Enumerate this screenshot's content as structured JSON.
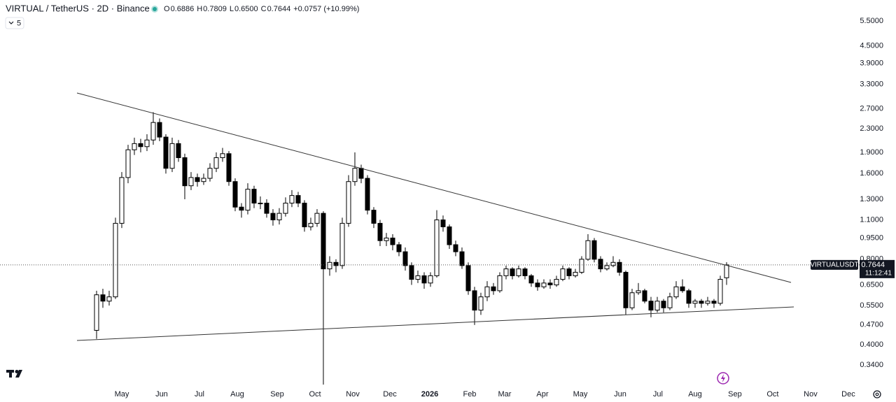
{
  "chart_data": {
    "type": "candlestick",
    "title": "VIRTUAL / TetherUS · 2D · Binance",
    "ohlc_header": [
      {
        "key": "O",
        "value": "0.6886"
      },
      {
        "key": "H",
        "value": "0.7809"
      },
      {
        "key": "L",
        "value": "0.6500"
      },
      {
        "key": "C",
        "value": "0.7644"
      }
    ],
    "change": "+0.0757 (+10.99%)",
    "indicator_count": "5",
    "symbol": "VIRTUALUSDT",
    "countdown": "11:12:41",
    "up_color": "#ffffff",
    "down_color": "#000000",
    "border_color": "#000000",
    "log_scale": true,
    "ylim": [
      0.287,
      6.52
    ],
    "yticks": [
      {
        "value": 5.5,
        "label": "5.5000"
      },
      {
        "value": 4.5,
        "label": "4.5000"
      },
      {
        "value": 3.9,
        "label": "3.9000"
      },
      {
        "value": 3.3,
        "label": "3.3000"
      },
      {
        "value": 2.7,
        "label": "2.7000"
      },
      {
        "value": 2.3,
        "label": "2.3000"
      },
      {
        "value": 1.9,
        "label": "1.9000"
      },
      {
        "value": 1.6,
        "label": "1.6000"
      },
      {
        "value": 1.3,
        "label": "1.3000"
      },
      {
        "value": 1.1,
        "label": "1.1000"
      },
      {
        "value": 0.95,
        "label": "0.9500"
      },
      {
        "value": 0.8,
        "label": "0.8000"
      },
      {
        "value": 0.65,
        "label": "0.6500"
      },
      {
        "value": 0.55,
        "label": "0.5500"
      },
      {
        "value": 0.47,
        "label": "0.4700"
      },
      {
        "value": 0.4,
        "label": "0.4000"
      },
      {
        "value": 0.34,
        "label": "0.3400"
      }
    ],
    "xlim": [
      -15.33,
      120.78
    ],
    "xticks": [
      {
        "value": 4,
        "label": "May"
      },
      {
        "value": 10.33,
        "label": "Jun"
      },
      {
        "value": 16.33,
        "label": "Jul"
      },
      {
        "value": 22.33,
        "label": "Aug"
      },
      {
        "value": 28.67,
        "label": "Sep"
      },
      {
        "value": 34.67,
        "label": "Oct"
      },
      {
        "value": 40.67,
        "label": "Nov"
      },
      {
        "value": 46.56,
        "label": "Dec"
      },
      {
        "value": 52.89,
        "label": "2026"
      },
      {
        "value": 59.22,
        "label": "Feb"
      },
      {
        "value": 64.78,
        "label": "Mar"
      },
      {
        "value": 70.78,
        "label": "Apr"
      },
      {
        "value": 76.78,
        "label": "May"
      },
      {
        "value": 83.11,
        "label": "Jun"
      },
      {
        "value": 89.11,
        "label": "Jul"
      },
      {
        "value": 95,
        "label": "Aug"
      },
      {
        "value": 101.33,
        "label": "Sep"
      },
      {
        "value": 107.33,
        "label": "Oct"
      },
      {
        "value": 113.33,
        "label": "Nov"
      },
      {
        "value": 119.33,
        "label": "Dec"
      }
    ],
    "ohlc": [
      [
        0.45,
        0.62,
        0.42,
        0.6
      ],
      [
        0.6,
        0.63,
        0.54,
        0.57
      ],
      [
        0.57,
        0.62,
        0.55,
        0.59
      ],
      [
        0.59,
        1.12,
        0.58,
        1.07
      ],
      [
        1.07,
        1.62,
        1.03,
        1.55
      ],
      [
        1.55,
        2.02,
        1.48,
        1.94
      ],
      [
        1.94,
        2.14,
        1.86,
        2.04
      ],
      [
        2.04,
        2.12,
        1.9,
        1.99
      ],
      [
        1.99,
        2.2,
        1.92,
        2.1
      ],
      [
        2.1,
        2.63,
        2.02,
        2.42
      ],
      [
        2.42,
        2.5,
        2.08,
        2.15
      ],
      [
        2.15,
        2.2,
        1.6,
        1.67
      ],
      [
        1.67,
        2.14,
        1.62,
        2.04
      ],
      [
        2.04,
        2.1,
        1.76,
        1.82
      ],
      [
        1.82,
        1.88,
        1.3,
        1.45
      ],
      [
        1.45,
        1.62,
        1.4,
        1.55
      ],
      [
        1.55,
        1.6,
        1.44,
        1.5
      ],
      [
        1.5,
        1.6,
        1.46,
        1.54
      ],
      [
        1.54,
        1.74,
        1.5,
        1.67
      ],
      [
        1.67,
        1.9,
        1.62,
        1.82
      ],
      [
        1.82,
        1.97,
        1.76,
        1.88
      ],
      [
        1.88,
        1.92,
        1.45,
        1.5
      ],
      [
        1.5,
        1.54,
        1.18,
        1.22
      ],
      [
        1.22,
        1.26,
        1.12,
        1.19
      ],
      [
        1.19,
        1.48,
        1.15,
        1.41
      ],
      [
        1.41,
        1.45,
        1.21,
        1.26
      ],
      [
        1.26,
        1.33,
        1.2,
        1.26
      ],
      [
        1.26,
        1.3,
        1.12,
        1.16
      ],
      [
        1.16,
        1.2,
        1.05,
        1.1
      ],
      [
        1.1,
        1.21,
        1.06,
        1.16
      ],
      [
        1.16,
        1.32,
        1.13,
        1.26
      ],
      [
        1.26,
        1.4,
        1.22,
        1.34
      ],
      [
        1.34,
        1.38,
        1.22,
        1.26
      ],
      [
        1.26,
        1.29,
        1.0,
        1.04
      ],
      [
        1.04,
        1.12,
        1.01,
        1.07
      ],
      [
        1.07,
        1.2,
        1.04,
        1.16
      ],
      [
        1.16,
        1.18,
        0.29,
        0.74
      ],
      [
        0.74,
        0.82,
        0.7,
        0.78
      ],
      [
        0.78,
        0.8,
        0.72,
        0.76
      ],
      [
        0.76,
        1.12,
        0.74,
        1.07
      ],
      [
        1.07,
        1.58,
        1.04,
        1.5
      ],
      [
        1.5,
        1.9,
        1.45,
        1.67
      ],
      [
        1.67,
        1.72,
        1.48,
        1.54
      ],
      [
        1.54,
        1.58,
        1.15,
        1.19
      ],
      [
        1.19,
        1.22,
        1.03,
        1.07
      ],
      [
        1.07,
        1.1,
        0.89,
        0.93
      ],
      [
        0.93,
        0.99,
        0.89,
        0.95
      ],
      [
        0.95,
        0.98,
        0.86,
        0.9
      ],
      [
        0.9,
        0.92,
        0.82,
        0.85
      ],
      [
        0.85,
        0.88,
        0.73,
        0.76
      ],
      [
        0.76,
        0.78,
        0.65,
        0.68
      ],
      [
        0.68,
        0.73,
        0.66,
        0.7
      ],
      [
        0.7,
        0.72,
        0.63,
        0.66
      ],
      [
        0.66,
        0.72,
        0.64,
        0.7
      ],
      [
        0.7,
        1.19,
        0.69,
        1.1
      ],
      [
        1.1,
        1.14,
        1.0,
        1.04
      ],
      [
        1.04,
        1.06,
        0.87,
        0.9
      ],
      [
        0.9,
        0.93,
        0.82,
        0.85
      ],
      [
        0.85,
        0.88,
        0.74,
        0.76
      ],
      [
        0.76,
        0.78,
        0.6,
        0.62
      ],
      [
        0.62,
        0.64,
        0.47,
        0.53
      ],
      [
        0.53,
        0.61,
        0.51,
        0.59
      ],
      [
        0.59,
        0.67,
        0.57,
        0.64
      ],
      [
        0.64,
        0.66,
        0.6,
        0.62
      ],
      [
        0.62,
        0.72,
        0.61,
        0.7
      ],
      [
        0.7,
        0.76,
        0.68,
        0.74
      ],
      [
        0.74,
        0.75,
        0.68,
        0.7
      ],
      [
        0.7,
        0.76,
        0.69,
        0.74
      ],
      [
        0.74,
        0.75,
        0.68,
        0.7
      ],
      [
        0.7,
        0.71,
        0.64,
        0.66
      ],
      [
        0.66,
        0.68,
        0.62,
        0.64
      ],
      [
        0.64,
        0.68,
        0.63,
        0.66
      ],
      [
        0.66,
        0.68,
        0.63,
        0.65
      ],
      [
        0.65,
        0.7,
        0.64,
        0.68
      ],
      [
        0.68,
        0.76,
        0.67,
        0.74
      ],
      [
        0.74,
        0.75,
        0.68,
        0.7
      ],
      [
        0.7,
        0.74,
        0.69,
        0.72
      ],
      [
        0.72,
        0.82,
        0.71,
        0.8
      ],
      [
        0.8,
        0.98,
        0.79,
        0.93
      ],
      [
        0.93,
        0.95,
        0.78,
        0.8
      ],
      [
        0.8,
        0.82,
        0.72,
        0.74
      ],
      [
        0.74,
        0.78,
        0.73,
        0.76
      ],
      [
        0.76,
        0.82,
        0.75,
        0.78
      ],
      [
        0.78,
        0.8,
        0.7,
        0.72
      ],
      [
        0.72,
        0.73,
        0.51,
        0.54
      ],
      [
        0.54,
        0.63,
        0.53,
        0.61
      ],
      [
        0.61,
        0.66,
        0.6,
        0.62
      ],
      [
        0.62,
        0.63,
        0.56,
        0.57
      ],
      [
        0.57,
        0.59,
        0.5,
        0.53
      ],
      [
        0.53,
        0.59,
        0.52,
        0.57
      ],
      [
        0.57,
        0.58,
        0.52,
        0.54
      ],
      [
        0.54,
        0.61,
        0.53,
        0.59
      ],
      [
        0.59,
        0.67,
        0.58,
        0.64
      ],
      [
        0.64,
        0.68,
        0.61,
        0.62
      ],
      [
        0.62,
        0.63,
        0.54,
        0.56
      ],
      [
        0.56,
        0.58,
        0.54,
        0.57
      ],
      [
        0.57,
        0.58,
        0.54,
        0.56
      ],
      [
        0.56,
        0.59,
        0.55,
        0.57
      ],
      [
        0.57,
        0.58,
        0.54,
        0.56
      ],
      [
        0.56,
        0.7,
        0.55,
        0.68
      ],
      [
        0.6886,
        0.7809,
        0.65,
        0.7644
      ]
    ]
  }
}
